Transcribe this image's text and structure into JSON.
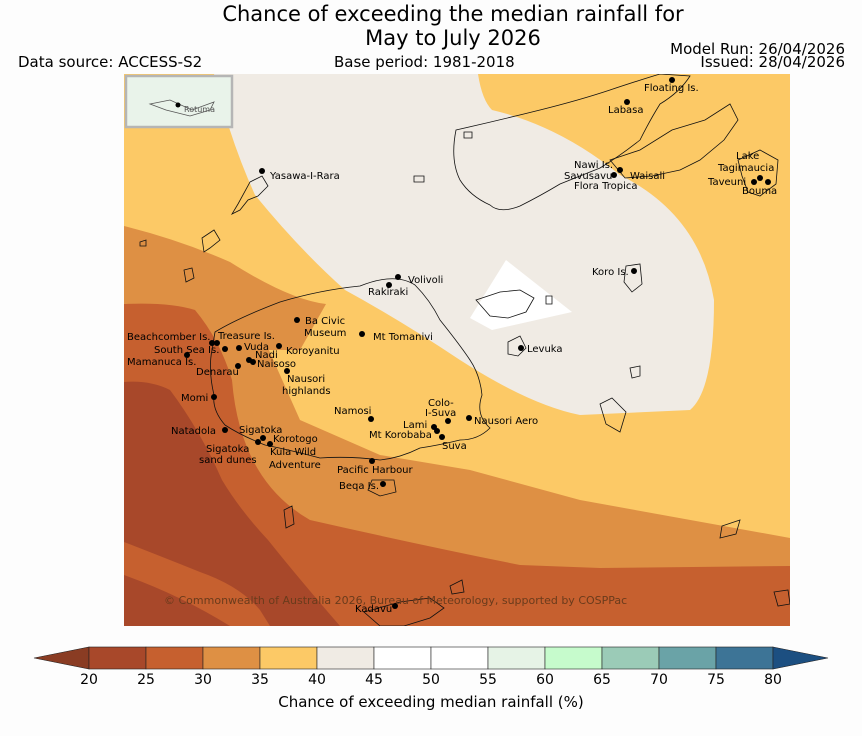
{
  "header": {
    "title_line1": "Chance of exceeding the median rainfall for",
    "title_line2": "May to July 2026",
    "data_source": "Data source: ACCESS-S2",
    "base_period": "Base period: 1981-2018",
    "model_run": "Model Run: 26/04/2026",
    "issued": "Issued: 28/04/2026"
  },
  "map": {
    "inset_label": "Rotuma",
    "copyright": "© Commonwealth of Australia 2026, Bureau of Meteorology, supported by COSPPac",
    "places": [
      "Floating Is.",
      "Labasa",
      "Yasawa-I-Rara",
      "Nawi Is.",
      "Savusavu",
      "Waisali",
      "Flora Tropica",
      "Lake",
      "Tagimaucia",
      "Taveuni",
      "Bouma",
      "Koro Is.",
      "Volivoli",
      "Rakiraki",
      "Ba Civic",
      "Museum",
      "Mt Tomanivi",
      "Levuka",
      "Beachcomber Is.",
      "Treasure Is.",
      "South Sea Is.",
      "Vuda",
      "Koroyanitu",
      "Nadi",
      "Mamanuca Is.",
      "Naisoso",
      "Denarau",
      "Nausori",
      "highlands",
      "Momi",
      "Colo-",
      "I-Suva",
      "Namosi",
      "Lami",
      "Nausori Aero",
      "Mt Korobaba",
      "Suva",
      "Natadola",
      "Sigatoka",
      "Korotogo",
      "Sigatoka",
      "sand dunes",
      "Kula Wild",
      "Adventure",
      "Pacific Harbour",
      "Beqa Is.",
      "Kadavu"
    ]
  },
  "colorbar": {
    "label": "Chance of exceeding median rainfall (%)",
    "ticks": [
      "20",
      "25",
      "30",
      "35",
      "40",
      "45",
      "50",
      "55",
      "60",
      "65",
      "70",
      "75",
      "80"
    ],
    "colors": [
      "#a8482a",
      "#c6602f",
      "#de9044",
      "#fcc966",
      "#f0ebe4",
      "#ffffff",
      "#ffffff",
      "#e6f3e6",
      "#c6fbcc",
      "#9bcbb7",
      "#6aa3a7",
      "#3d7496"
    ],
    "under_color": "#8a3c23",
    "over_color": "#1c4f81"
  }
}
